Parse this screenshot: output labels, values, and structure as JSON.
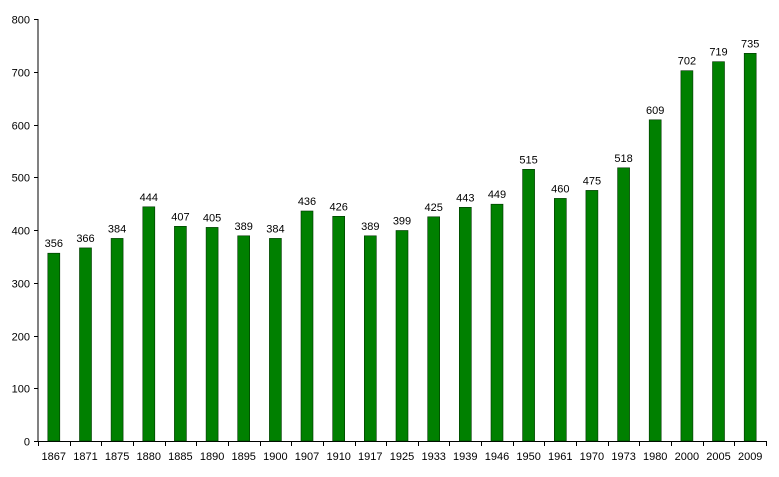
{
  "chart_data": {
    "type": "bar",
    "title": "",
    "xlabel": "",
    "ylabel": "",
    "ylim": [
      0,
      800
    ],
    "yticks": [
      0,
      100,
      200,
      300,
      400,
      500,
      600,
      700,
      800
    ],
    "grid": false,
    "legend": "none",
    "categories": [
      "1867",
      "1871",
      "1875",
      "1880",
      "1885",
      "1890",
      "1895",
      "1900",
      "1907",
      "1910",
      "1917",
      "1925",
      "1933",
      "1939",
      "1946",
      "1950",
      "1961",
      "1970",
      "1973",
      "1980",
      "2000",
      "2005",
      "2009"
    ],
    "values": [
      356,
      366,
      384,
      444,
      407,
      405,
      389,
      384,
      436,
      426,
      389,
      399,
      425,
      443,
      449,
      515,
      460,
      475,
      518,
      609,
      702,
      719,
      735
    ],
    "data_labels": [
      "356",
      "366",
      "384",
      "444",
      "407",
      "405",
      "389",
      "384",
      "436",
      "426",
      "389",
      "399",
      "425",
      "443",
      "449",
      "515",
      "460",
      "475",
      "518",
      "609",
      "702",
      "719",
      "735"
    ],
    "colors": {
      "bar_fill": "#008000",
      "bar_stroke": "#003300",
      "axis": "#000000",
      "text": "#000000"
    }
  }
}
